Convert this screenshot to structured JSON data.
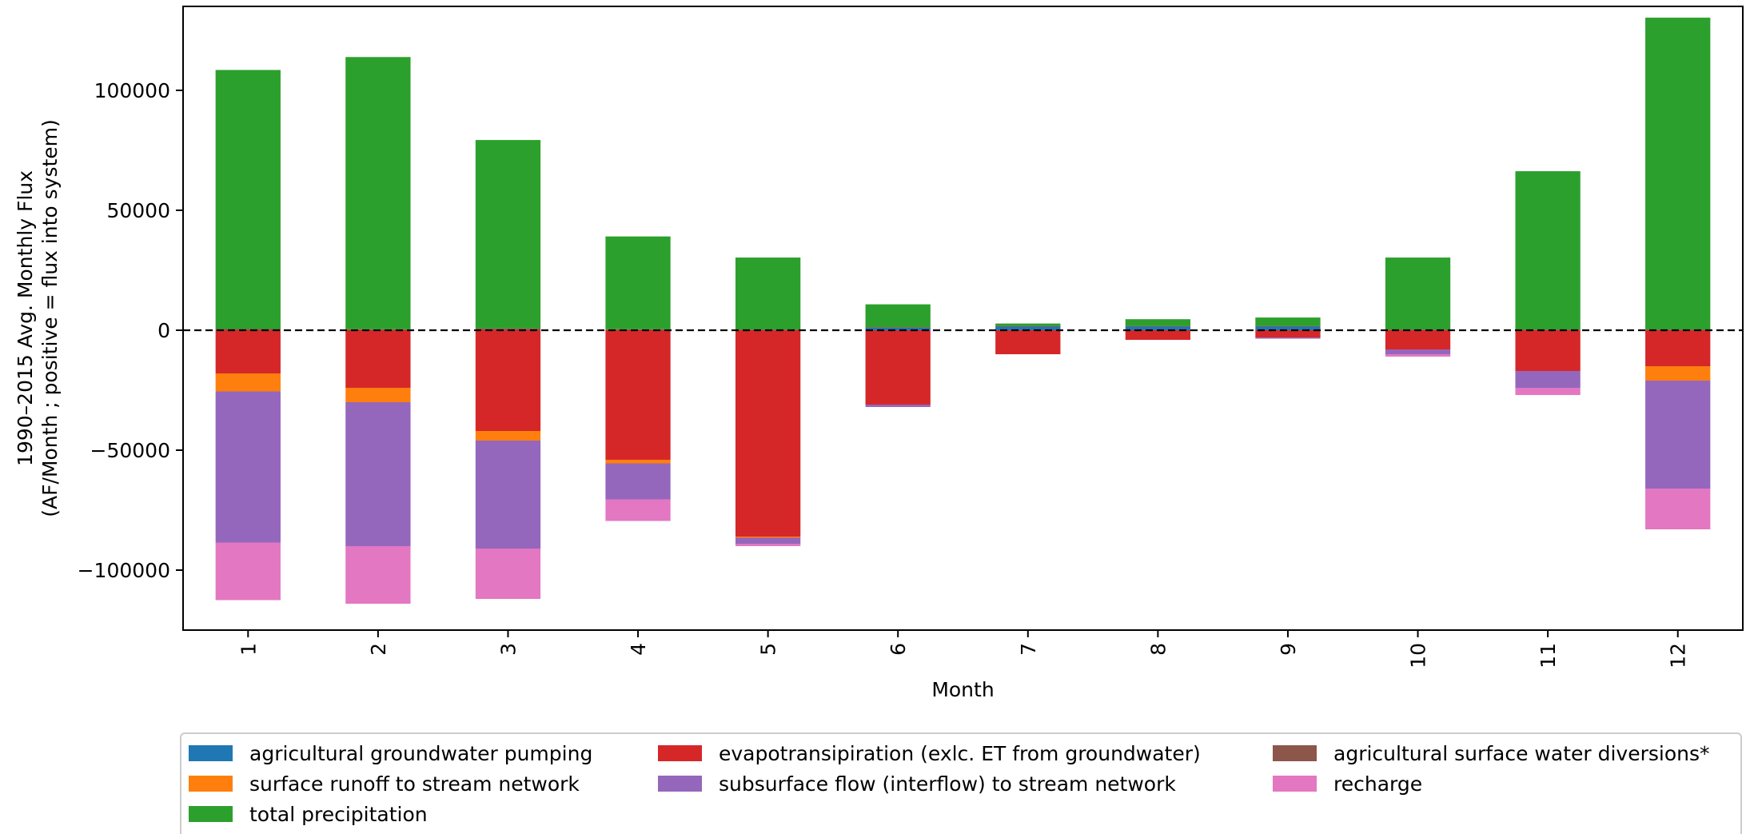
{
  "chart_data": {
    "type": "bar",
    "stacked": true,
    "title": "",
    "xlabel": "Month",
    "ylabel_line1": "1990–2015 Avg. Monthly Flux",
    "ylabel_line2": "(AF/Month ; positive = flux into system)",
    "ylim": [
      -125000,
      135000
    ],
    "yticks": [
      100000,
      50000,
      0,
      -50000,
      -100000
    ],
    "ytick_labels": [
      "100000",
      "50000",
      "0",
      "−50000",
      "−100000"
    ],
    "categories": [
      "1",
      "2",
      "3",
      "4",
      "5",
      "6",
      "7",
      "8",
      "9",
      "10",
      "11",
      "12"
    ],
    "zero_line": "dashed",
    "grid": false,
    "legend_position": "bottom",
    "series": [
      {
        "name": "agricultural groundwater pumping",
        "color": "#1f77b4",
        "values": [
          0,
          0,
          0,
          0,
          0,
          1000,
          1500,
          1500,
          1500,
          0,
          0,
          0
        ]
      },
      {
        "name": "evapotransipiration (exlc. ET from groundwater)",
        "color": "#d62728",
        "values": [
          -18000,
          -24000,
          -42000,
          -54000,
          -86000,
          -31000,
          -10000,
          -4000,
          -3000,
          -8000,
          -17000,
          -15000
        ]
      },
      {
        "name": "agricultural surface water diversions*",
        "color": "#8c564b",
        "values": [
          500,
          400,
          800,
          400,
          300,
          300,
          300,
          300,
          300,
          300,
          300,
          300
        ]
      },
      {
        "name": "surface runoff to stream network",
        "color": "#ff7f0e",
        "values": [
          -7500,
          -6000,
          -4000,
          -1500,
          -500,
          0,
          0,
          0,
          0,
          0,
          0,
          -6000
        ]
      },
      {
        "name": "subsurface flow (interflow) to stream network",
        "color": "#9467bd",
        "values": [
          -63000,
          -60000,
          -45000,
          -15000,
          -2500,
          -1000,
          0,
          0,
          -500,
          -2000,
          -7000,
          -45000
        ]
      },
      {
        "name": "recharge",
        "color": "#e377c2",
        "values": [
          -24000,
          -24000,
          -21000,
          -9000,
          -1000,
          0,
          0,
          0,
          0,
          -1000,
          -3000,
          -17000
        ]
      },
      {
        "name": "total precipitation",
        "color": "#2ca02c",
        "values": [
          108000,
          113500,
          78500,
          38700,
          30000,
          9500,
          1000,
          2800,
          3500,
          30000,
          66000,
          130000
        ]
      }
    ]
  }
}
